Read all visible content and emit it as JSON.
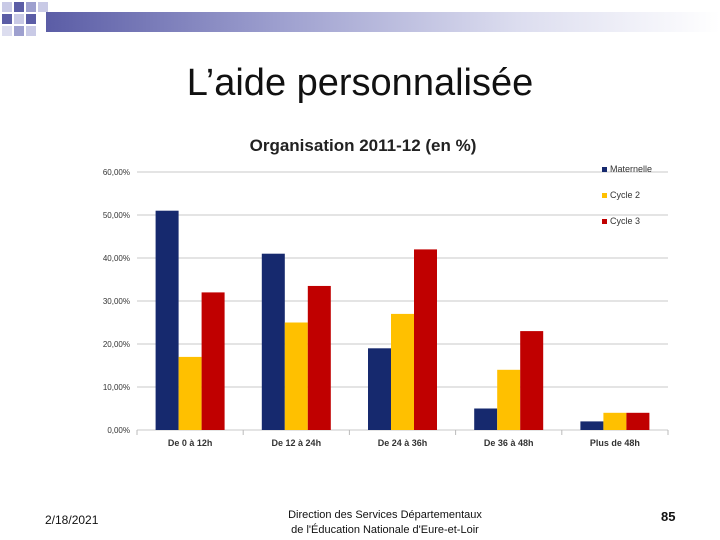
{
  "slide": {
    "title": "L’aide personnalisée",
    "footer_date": "2/18/2021",
    "footer_line1": "Direction des Services Départementaux",
    "footer_line2": "de l'Éducation Nationale d'Eure-et-Loir",
    "page_number": "85"
  },
  "colors": {
    "grid": "#c8c8c8",
    "axis": "#bbbbbb"
  },
  "chart_data": {
    "type": "bar",
    "title": "Organisation  2011-12 (en %)",
    "categories": [
      "De 0 à 12h",
      "De 12 à 24h",
      "De 24 à 36h",
      "De 36 à 48h",
      "Plus de 48h"
    ],
    "series": [
      {
        "name": "Maternelle",
        "color": "#16296e",
        "values": [
          51,
          41,
          19,
          5,
          2
        ]
      },
      {
        "name": "Cycle 2",
        "color": "#ffc000",
        "values": [
          17,
          25,
          27,
          14,
          4
        ]
      },
      {
        "name": "Cycle 3",
        "color": "#c00000",
        "values": [
          32,
          33.5,
          42,
          23,
          4
        ]
      }
    ],
    "ylim": [
      0,
      60
    ],
    "yticks": [
      "0,00%",
      "10,00%",
      "20,00%",
      "30,00%",
      "40,00%",
      "50,00%",
      "60,00%"
    ],
    "legend_position": "top-right",
    "grid": true,
    "xlabel": "",
    "ylabel": ""
  }
}
